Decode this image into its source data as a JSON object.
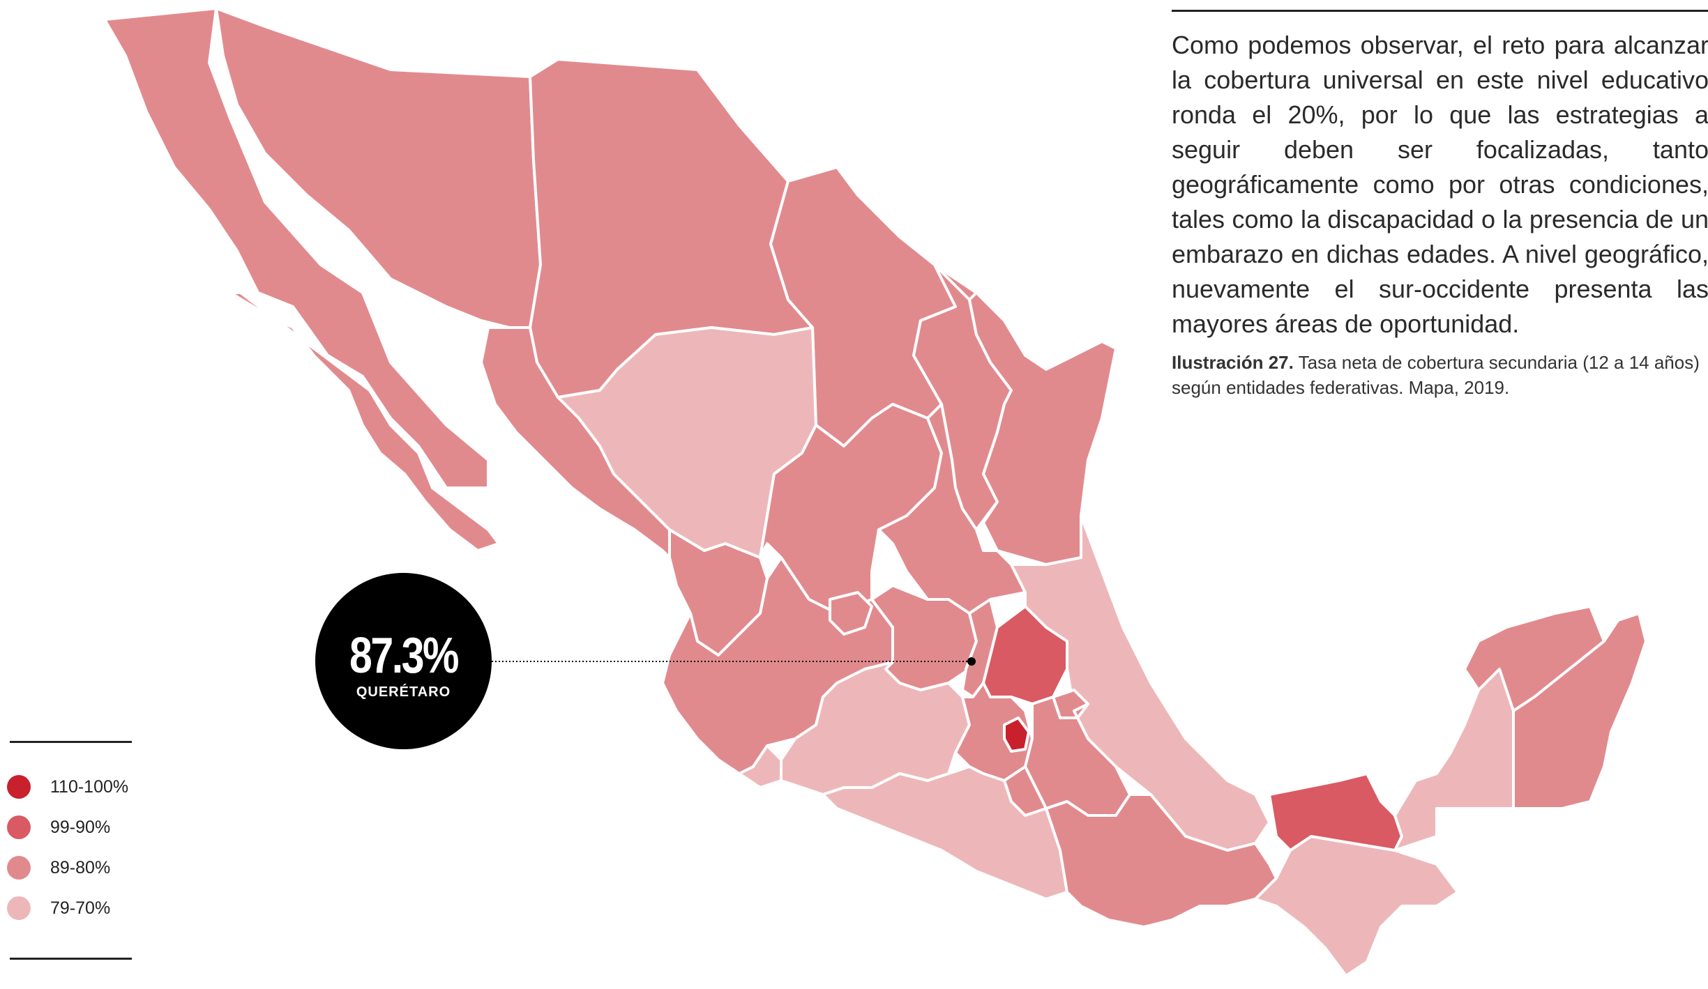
{
  "body_text": "Como podemos observar, el reto para alcanzar la cobertura universal en este nivel educativo ronda el 20%, por lo que las estrategias a seguir deben ser focalizadas, tanto geográficamente como por otras condiciones, tales como la discapacidad o la presencia de un embarazo en dichas edades. A nivel geográfico, nuevamente el sur-occidente presenta las mayores áreas de oportunidad.",
  "caption": {
    "label": "Ilustración 27.",
    "text": "Tasa neta de cobertura secundaria (12 a 14 años) según entidades federativas. Mapa, 2019."
  },
  "callout": {
    "value": "87.3%",
    "state": "QUERÉTARO"
  },
  "legend": [
    {
      "label": "110-100%",
      "color": "#c8202d"
    },
    {
      "label": "99-90%",
      "color": "#d95a63"
    },
    {
      "label": "89-80%",
      "color": "#e18a8e"
    },
    {
      "label": "79-70%",
      "color": "#edb7b9"
    }
  ],
  "map_regions": [
    {
      "name": "Baja California",
      "category": "89-80%"
    },
    {
      "name": "Baja California Sur",
      "category": "89-80%"
    },
    {
      "name": "Sonora",
      "category": "89-80%"
    },
    {
      "name": "Chihuahua",
      "category": "89-80%"
    },
    {
      "name": "Coahuila",
      "category": "89-80%"
    },
    {
      "name": "Nuevo León",
      "category": "89-80%"
    },
    {
      "name": "Tamaulipas",
      "category": "89-80%"
    },
    {
      "name": "Sinaloa",
      "category": "89-80%"
    },
    {
      "name": "Durango",
      "category": "79-70%"
    },
    {
      "name": "Zacatecas",
      "category": "89-80%"
    },
    {
      "name": "San Luis Potosí",
      "category": "89-80%"
    },
    {
      "name": "Nayarit",
      "category": "89-80%"
    },
    {
      "name": "Jalisco",
      "category": "89-80%"
    },
    {
      "name": "Aguascalientes",
      "category": "89-80%"
    },
    {
      "name": "Guanajuato",
      "category": "89-80%"
    },
    {
      "name": "Querétaro",
      "category": "89-80%"
    },
    {
      "name": "Hidalgo",
      "category": "99-90%"
    },
    {
      "name": "Veracruz",
      "category": "79-70%"
    },
    {
      "name": "Colima",
      "category": "79-70%"
    },
    {
      "name": "Michoacán",
      "category": "79-70%"
    },
    {
      "name": "Estado de México",
      "category": "89-80%"
    },
    {
      "name": "Ciudad de México",
      "category": "110-100%"
    },
    {
      "name": "Tlaxcala",
      "category": "89-80%"
    },
    {
      "name": "Puebla",
      "category": "89-80%"
    },
    {
      "name": "Morelos",
      "category": "89-80%"
    },
    {
      "name": "Guerrero",
      "category": "79-70%"
    },
    {
      "name": "Oaxaca",
      "category": "89-80%"
    },
    {
      "name": "Chiapas",
      "category": "79-70%"
    },
    {
      "name": "Tabasco",
      "category": "99-90%"
    },
    {
      "name": "Campeche",
      "category": "79-70%"
    },
    {
      "name": "Yucatán",
      "category": "89-80%"
    },
    {
      "name": "Quintana Roo",
      "category": "89-80%"
    }
  ]
}
